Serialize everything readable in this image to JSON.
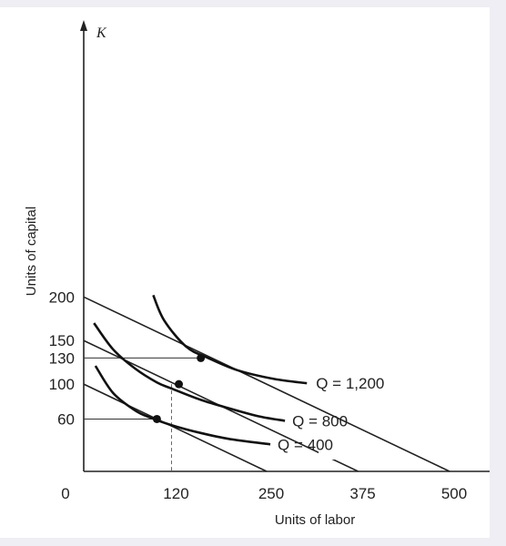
{
  "chart_data": {
    "type": "line",
    "title": "",
    "xlabel": "Units of labor",
    "ylabel": "Units of capital",
    "y_axis_symbol": "K",
    "origin_label": "0",
    "x_ticks": [
      {
        "value": 120,
        "label": "120"
      },
      {
        "value": 250,
        "label": "250"
      },
      {
        "value": 375,
        "label": "375"
      },
      {
        "value": 500,
        "label": "500"
      }
    ],
    "y_ticks": [
      {
        "value": 60,
        "label": "60"
      },
      {
        "value": 100,
        "label": "100"
      },
      {
        "value": 130,
        "label": "130"
      },
      {
        "value": 150,
        "label": "150"
      },
      {
        "value": 200,
        "label": "200"
      }
    ],
    "isocosts": [
      {
        "x_intercept": 250,
        "y_intercept": 100
      },
      {
        "x_intercept": 375,
        "y_intercept": 150
      },
      {
        "x_intercept": 500,
        "y_intercept": 200
      }
    ],
    "isoquants": [
      {
        "label": "Q = 400",
        "points": [
          [
            16,
            121
          ],
          [
            40,
            90
          ],
          [
            70,
            70
          ],
          [
            90,
            62
          ],
          [
            120,
            53
          ],
          [
            160,
            44
          ],
          [
            200,
            37
          ],
          [
            255,
            31
          ]
        ]
      },
      {
        "label": "Q = 800",
        "points": [
          [
            14,
            170
          ],
          [
            40,
            140
          ],
          [
            70,
            118
          ],
          [
            100,
            102
          ],
          [
            120,
            95
          ],
          [
            160,
            82
          ],
          [
            200,
            72
          ],
          [
            240,
            63
          ],
          [
            275,
            58
          ]
        ]
      },
      {
        "label": "Q = 1,200",
        "points": [
          [
            95,
            202
          ],
          [
            110,
            173
          ],
          [
            140,
            143
          ],
          [
            170,
            130
          ],
          [
            210,
            116
          ],
          [
            260,
            106
          ],
          [
            305,
            101
          ]
        ]
      }
    ],
    "tangency_points": [
      [
        100,
        60
      ],
      [
        130,
        100
      ],
      [
        160,
        130
      ]
    ],
    "reference_lines": {
      "horizontal": [
        130,
        60
      ],
      "dashed_vertical": 120
    },
    "xlim": [
      0,
      520
    ],
    "ylim": [
      0,
      240
    ],
    "grid": false
  }
}
